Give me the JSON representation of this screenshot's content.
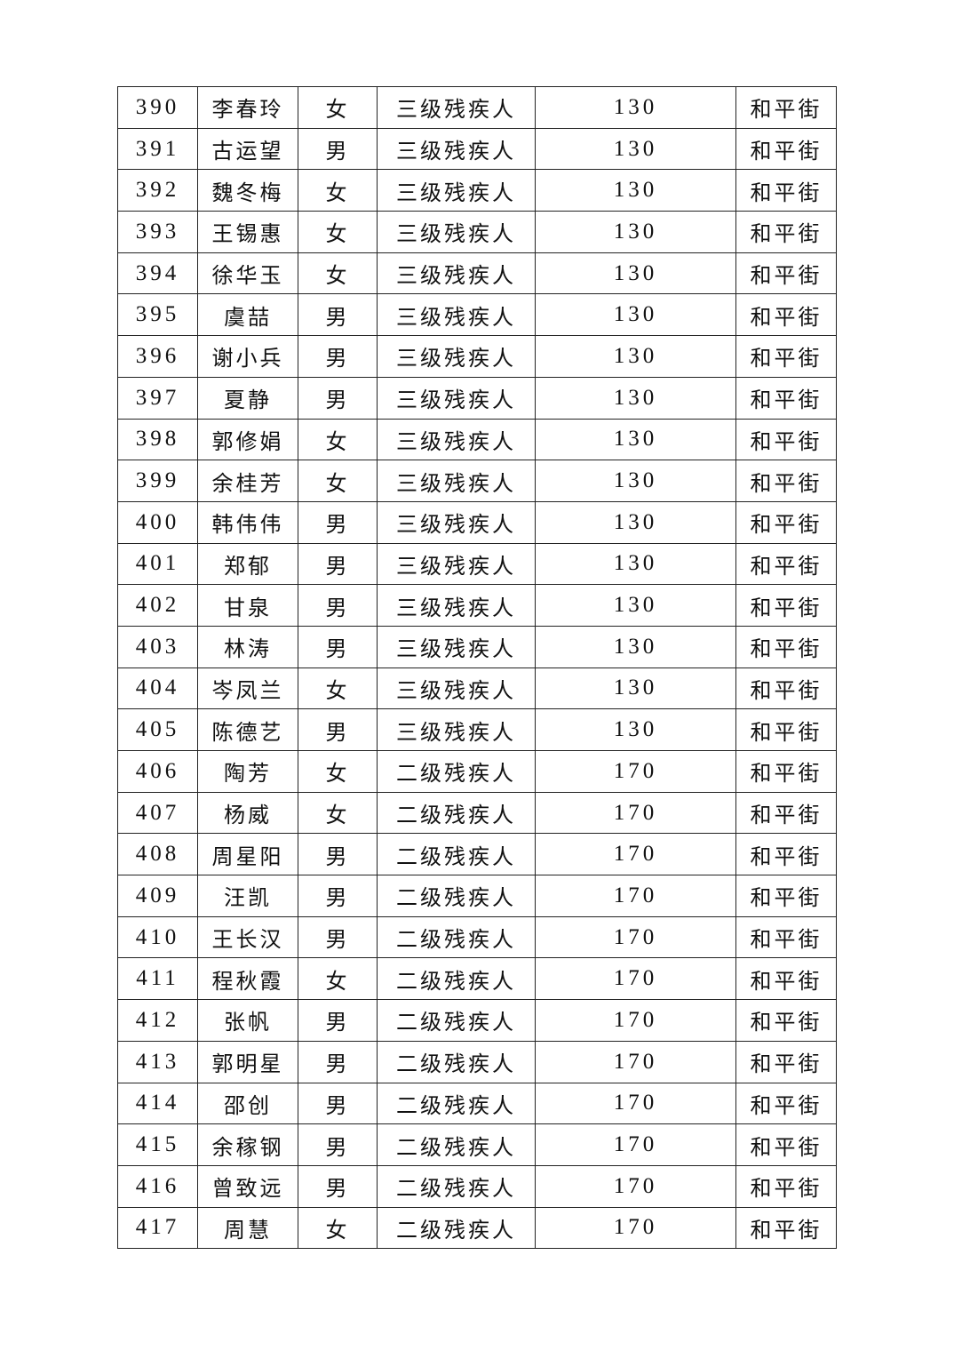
{
  "table": {
    "rows": [
      [
        "390",
        "李春玲",
        "女",
        "三级残疾人",
        "130",
        "和平街"
      ],
      [
        "391",
        "古运望",
        "男",
        "三级残疾人",
        "130",
        "和平街"
      ],
      [
        "392",
        "魏冬梅",
        "女",
        "三级残疾人",
        "130",
        "和平街"
      ],
      [
        "393",
        "王锡惠",
        "女",
        "三级残疾人",
        "130",
        "和平街"
      ],
      [
        "394",
        "徐华玉",
        "女",
        "三级残疾人",
        "130",
        "和平街"
      ],
      [
        "395",
        "虞喆",
        "男",
        "三级残疾人",
        "130",
        "和平街"
      ],
      [
        "396",
        "谢小兵",
        "男",
        "三级残疾人",
        "130",
        "和平街"
      ],
      [
        "397",
        "夏静",
        "男",
        "三级残疾人",
        "130",
        "和平街"
      ],
      [
        "398",
        "郭修娟",
        "女",
        "三级残疾人",
        "130",
        "和平街"
      ],
      [
        "399",
        "余桂芳",
        "女",
        "三级残疾人",
        "130",
        "和平街"
      ],
      [
        "400",
        "韩伟伟",
        "男",
        "三级残疾人",
        "130",
        "和平街"
      ],
      [
        "401",
        "郑郁",
        "男",
        "三级残疾人",
        "130",
        "和平街"
      ],
      [
        "402",
        "甘泉",
        "男",
        "三级残疾人",
        "130",
        "和平街"
      ],
      [
        "403",
        "林涛",
        "男",
        "三级残疾人",
        "130",
        "和平街"
      ],
      [
        "404",
        "岑凤兰",
        "女",
        "三级残疾人",
        "130",
        "和平街"
      ],
      [
        "405",
        "陈德艺",
        "男",
        "三级残疾人",
        "130",
        "和平街"
      ],
      [
        "406",
        "陶芳",
        "女",
        "二级残疾人",
        "170",
        "和平街"
      ],
      [
        "407",
        "杨威",
        "女",
        "二级残疾人",
        "170",
        "和平街"
      ],
      [
        "408",
        "周星阳",
        "男",
        "二级残疾人",
        "170",
        "和平街"
      ],
      [
        "409",
        "汪凯",
        "男",
        "二级残疾人",
        "170",
        "和平街"
      ],
      [
        "410",
        "王长汉",
        "男",
        "二级残疾人",
        "170",
        "和平街"
      ],
      [
        "411",
        "程秋霞",
        "女",
        "二级残疾人",
        "170",
        "和平街"
      ],
      [
        "412",
        "张帆",
        "男",
        "二级残疾人",
        "170",
        "和平街"
      ],
      [
        "413",
        "郭明星",
        "男",
        "二级残疾人",
        "170",
        "和平街"
      ],
      [
        "414",
        "邵创",
        "男",
        "二级残疾人",
        "170",
        "和平街"
      ],
      [
        "415",
        "余稼钢",
        "男",
        "二级残疾人",
        "170",
        "和平街"
      ],
      [
        "416",
        "曾致远",
        "男",
        "二级残疾人",
        "170",
        "和平街"
      ],
      [
        "417",
        "周慧",
        "女",
        "二级残疾人",
        "170",
        "和平街"
      ]
    ]
  }
}
